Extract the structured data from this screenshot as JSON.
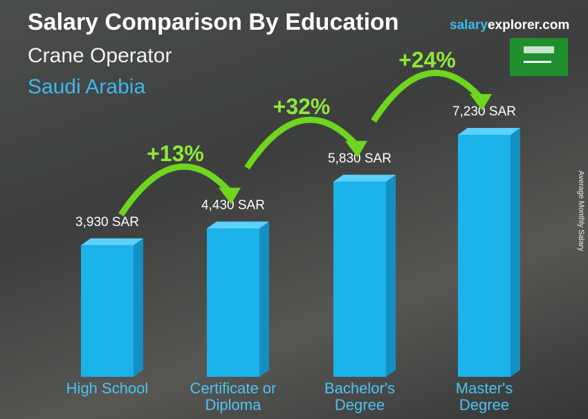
{
  "chart_data": {
    "type": "bar",
    "title": "Salary Comparison By Education",
    "subtitle": "Crane Operator",
    "location": "Saudi Arabia",
    "brand_parts": [
      "salary",
      "explorer.com"
    ],
    "y_label": "Average Monthly Salary",
    "categories": [
      "High School",
      "Certificate or Diploma",
      "Bachelor's Degree",
      "Master's Degree"
    ],
    "values": [
      3930,
      4430,
      5830,
      7230
    ],
    "value_labels": [
      "3,930 SAR",
      "4,430 SAR",
      "5,830 SAR",
      "7,230 SAR"
    ],
    "changes": [
      "+13%",
      "+32%",
      "+24%"
    ],
    "color": "#1bb3ea"
  }
}
